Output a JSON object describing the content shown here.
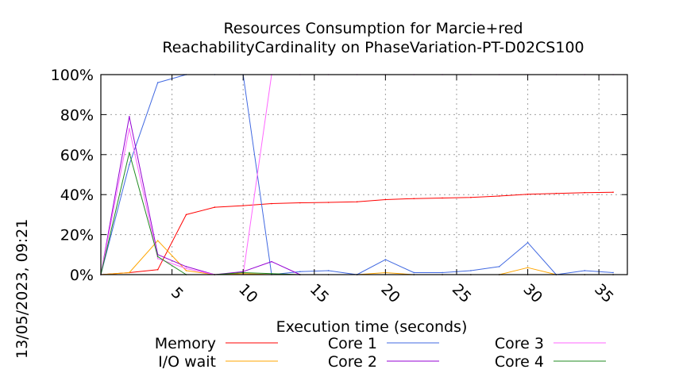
{
  "chart_data": {
    "type": "line",
    "title_line1": "Resources Consumption for Marcie+red",
    "title_line2": "ReachabilityCardinality on PhaseVariation-PT-D02CS100",
    "xlabel": "Execution time (seconds)",
    "ylabel": "",
    "side_label": "13/05/2023, 09:21",
    "xlim": [
      0,
      37
    ],
    "ylim": [
      0,
      100
    ],
    "x_ticks": [
      5,
      10,
      15,
      20,
      25,
      30,
      35
    ],
    "x_tick_labels": [
      "5",
      "10",
      "15",
      "20",
      "25",
      "30",
      "35"
    ],
    "y_ticks": [
      0,
      20,
      40,
      60,
      80,
      100
    ],
    "y_tick_labels": [
      "0%",
      "20%",
      "40%",
      "60%",
      "80%",
      "100%"
    ],
    "grid": true,
    "legend_position": "bottom",
    "series": [
      {
        "name": "Memory",
        "color": "#ff0000",
        "x": [
          0,
          2,
          4,
          6,
          8,
          10,
          12,
          14,
          16,
          18,
          20,
          22,
          24,
          26,
          28,
          30,
          32,
          34,
          36
        ],
        "y": [
          0,
          1,
          2.5,
          30,
          33.7,
          34.5,
          35.5,
          35.9,
          36.1,
          36.4,
          37.5,
          38,
          38.3,
          38.6,
          39.3,
          40.2,
          40.6,
          41,
          41.2
        ]
      },
      {
        "name": "I/O wait",
        "color": "#ffa500",
        "x": [
          0,
          2,
          4,
          6,
          8,
          10,
          12,
          14,
          16,
          18,
          20,
          22,
          24,
          26,
          28,
          30,
          32,
          34,
          36
        ],
        "y": [
          0,
          1,
          17,
          2,
          0,
          0.5,
          0,
          0,
          0,
          0,
          1,
          0,
          0,
          0,
          0,
          3.5,
          0,
          0,
          0
        ]
      },
      {
        "name": "Core 1",
        "color": "#4169e1",
        "x": [
          0,
          2,
          4,
          6,
          8,
          10,
          12,
          14,
          16,
          18,
          20,
          22,
          24,
          26,
          28,
          30,
          32,
          34,
          36
        ],
        "y": [
          0,
          55,
          96,
          100,
          100,
          100,
          0,
          1.5,
          2,
          0,
          7.5,
          1,
          1,
          2,
          4,
          16,
          0,
          2,
          1
        ]
      },
      {
        "name": "Core 2",
        "color": "#9400d3",
        "x": [
          0,
          2,
          4,
          6,
          8,
          10,
          12,
          14,
          16,
          18,
          20,
          22,
          24,
          26,
          28,
          30,
          32,
          34,
          36
        ],
        "y": [
          0,
          79,
          10,
          4,
          0,
          1.5,
          6.5,
          0,
          0,
          0,
          0,
          0,
          0,
          0,
          0,
          0,
          0,
          0,
          0
        ]
      },
      {
        "name": "Core 3",
        "color": "#ff66ff",
        "x": [
          0,
          2,
          4,
          6,
          8,
          10,
          12,
          14,
          16,
          18,
          20,
          22,
          24,
          26,
          28,
          30,
          32,
          34,
          36
        ],
        "y": [
          0,
          73,
          8,
          3,
          0,
          0,
          100,
          100,
          100,
          100,
          100,
          100,
          100,
          100,
          100,
          100,
          100,
          100,
          100
        ]
      },
      {
        "name": "Core 4",
        "color": "#228b22",
        "x": [
          0,
          2,
          4,
          6,
          8,
          10,
          12,
          14,
          16,
          18,
          20,
          22,
          24,
          26,
          28,
          30,
          32,
          34,
          36
        ],
        "y": [
          0,
          61,
          9,
          0,
          0,
          1,
          0.5,
          0,
          0,
          0,
          0,
          0,
          0,
          0,
          0,
          0,
          0,
          0,
          0
        ]
      }
    ]
  }
}
